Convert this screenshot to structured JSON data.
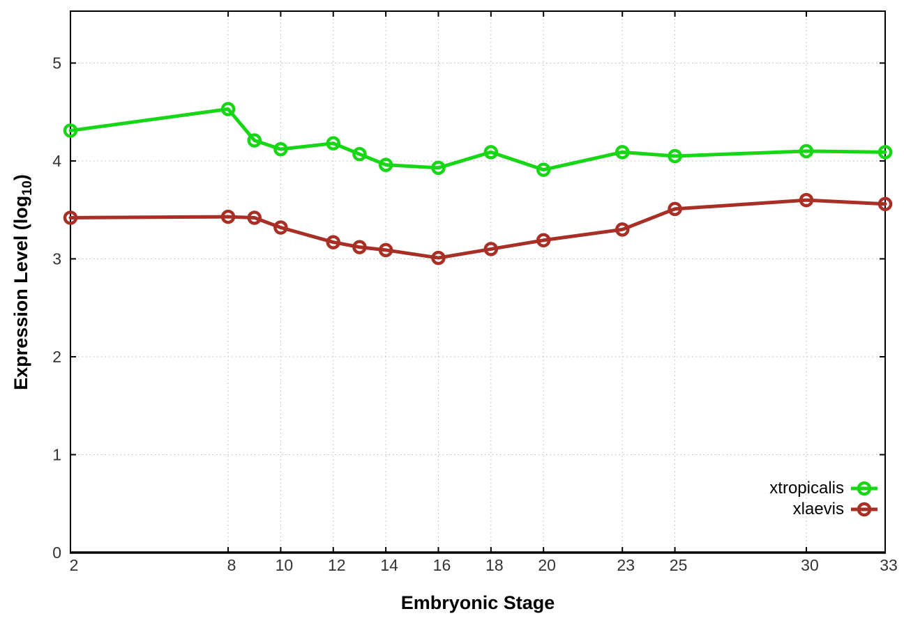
{
  "chart_data": {
    "type": "line",
    "title": "",
    "xlabel": "Embryonic Stage",
    "ylabel": "Expression Level (log10)",
    "ylabel_main": "Expression Level (log",
    "ylabel_sub": "10",
    "ylabel_close": ")",
    "x": [
      2,
      8,
      9,
      10,
      12,
      13,
      14,
      16,
      18,
      20,
      23,
      25,
      30,
      33
    ],
    "series": [
      {
        "name": "xtropicalis",
        "color": "#16d616",
        "marker": "open-circle",
        "values": [
          4.31,
          4.53,
          4.21,
          4.12,
          4.18,
          4.07,
          3.96,
          3.93,
          4.09,
          3.91,
          4.09,
          4.05,
          4.1,
          4.09
        ]
      },
      {
        "name": "xlaevis",
        "color": "#a82f26",
        "marker": "open-circle",
        "values": [
          3.42,
          3.43,
          3.42,
          3.32,
          3.17,
          3.12,
          3.09,
          3.01,
          3.1,
          3.19,
          3.3,
          3.51,
          3.6,
          3.56
        ]
      }
    ],
    "x_ticks": [
      2,
      8,
      10,
      12,
      14,
      16,
      18,
      20,
      23,
      25,
      30,
      33
    ],
    "y_ticks": [
      0,
      1,
      2,
      3,
      4,
      5
    ],
    "xlim": [
      2,
      33
    ],
    "ylim": [
      0,
      5.53
    ],
    "grid": true,
    "grid_style": "dotted",
    "legend_position": "inside-bottom-right",
    "colors": {
      "axis": "#000000",
      "grid": "#b5b5b5",
      "tick_label": "#333333",
      "background": "#ffffff"
    }
  }
}
